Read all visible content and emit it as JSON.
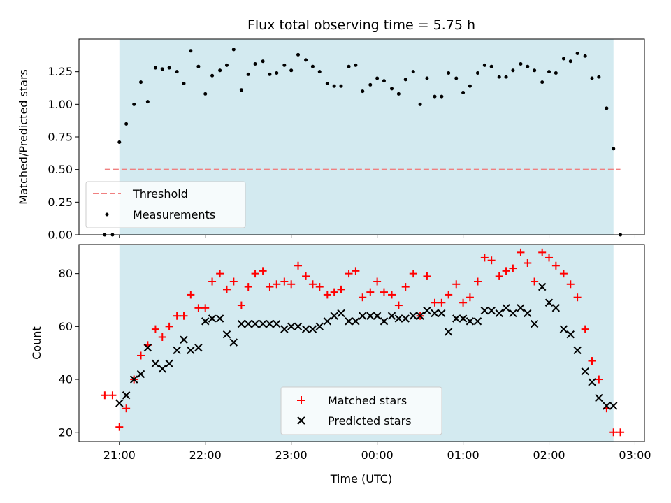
{
  "chart_data": {
    "title": "Flux total observing time = 5.75 h",
    "xlabel": "Time (UTC)",
    "x_ticks": [
      "21:00",
      "22:00",
      "23:00",
      "00:00",
      "01:00",
      "02:00",
      "03:00"
    ],
    "x_range_hours": [
      -0.47,
      6.11
    ],
    "shaded_interval_hours": [
      0,
      5.75
    ],
    "shade_color": "#d3eaf0",
    "top": {
      "type": "scatter",
      "ylabel": "Matched/Predicted stars",
      "ylim": [
        0,
        1.5
      ],
      "y_ticks": [
        "0.00",
        "0.25",
        "0.50",
        "0.75",
        "1.00",
        "1.25"
      ],
      "threshold": {
        "name": "Threshold",
        "value": 0.5,
        "x_start": -0.17,
        "x_end": 5.83,
        "color": "#f08080"
      },
      "series": {
        "name": "Measurements",
        "color": "#000000",
        "x": [
          -0.17,
          -0.08,
          0,
          0.08,
          0.17,
          0.25,
          0.33,
          0.42,
          0.5,
          0.58,
          0.67,
          0.75,
          0.83,
          0.92,
          1,
          1.08,
          1.17,
          1.25,
          1.33,
          1.42,
          1.5,
          1.58,
          1.67,
          1.75,
          1.83,
          1.92,
          2,
          2.08,
          2.17,
          2.25,
          2.33,
          2.42,
          2.5,
          2.58,
          2.67,
          2.75,
          2.83,
          2.92,
          3,
          3.08,
          3.17,
          3.25,
          3.33,
          3.42,
          3.5,
          3.58,
          3.67,
          3.75,
          3.83,
          3.92,
          4,
          4.08,
          4.17,
          4.25,
          4.33,
          4.42,
          4.5,
          4.58,
          4.67,
          4.75,
          4.83,
          4.92,
          5,
          5.08,
          5.17,
          5.25,
          5.33,
          5.42,
          5.5,
          5.58,
          5.67,
          5.75,
          5.83
        ],
        "y": [
          0,
          0,
          0.71,
          0.85,
          1,
          1.17,
          1.02,
          1.28,
          1.27,
          1.28,
          1.25,
          1.16,
          1.41,
          1.29,
          1.08,
          1.22,
          1.26,
          1.3,
          1.42,
          1.11,
          1.23,
          1.31,
          1.33,
          1.23,
          1.24,
          1.3,
          1.26,
          1.38,
          1.34,
          1.29,
          1.25,
          1.16,
          1.14,
          1.14,
          1.29,
          1.3,
          1.1,
          1.15,
          1.2,
          1.18,
          1.12,
          1.08,
          1.19,
          1.25,
          1,
          1.2,
          1.06,
          1.06,
          1.24,
          1.2,
          1.09,
          1.14,
          1.24,
          1.3,
          1.29,
          1.21,
          1.21,
          1.26,
          1.31,
          1.29,
          1.26,
          1.17,
          1.25,
          1.24,
          1.35,
          1.33,
          1.39,
          1.37,
          1.2,
          1.21,
          0.97,
          0.66,
          0
        ]
      }
    },
    "bottom": {
      "type": "scatter",
      "ylabel": "Count",
      "ylim": [
        16.5,
        91
      ],
      "y_ticks": [
        "20",
        "40",
        "60",
        "80"
      ],
      "series": [
        {
          "name": "Matched stars",
          "marker": "+",
          "color": "#ff0000",
          "x": [
            -0.17,
            -0.08,
            0,
            0.08,
            0.17,
            0.25,
            0.33,
            0.42,
            0.5,
            0.58,
            0.67,
            0.75,
            0.83,
            0.92,
            1,
            1.08,
            1.17,
            1.25,
            1.33,
            1.42,
            1.5,
            1.58,
            1.67,
            1.75,
            1.83,
            1.92,
            2,
            2.08,
            2.17,
            2.25,
            2.33,
            2.42,
            2.5,
            2.58,
            2.67,
            2.75,
            2.83,
            2.92,
            3,
            3.08,
            3.17,
            3.25,
            3.33,
            3.42,
            3.5,
            3.58,
            3.67,
            3.75,
            3.83,
            3.92,
            4,
            4.08,
            4.17,
            4.25,
            4.33,
            4.42,
            4.5,
            4.58,
            4.67,
            4.75,
            4.83,
            4.92,
            5,
            5.08,
            5.17,
            5.25,
            5.33,
            5.42,
            5.5,
            5.58,
            5.67,
            5.75,
            5.83
          ],
          "y": [
            34,
            34,
            22,
            29,
            40,
            49,
            53,
            59,
            56,
            60,
            64,
            64,
            72,
            67,
            67,
            77,
            80,
            74,
            77,
            68,
            75,
            80,
            81,
            75,
            76,
            77,
            76,
            83,
            79,
            76,
            75,
            72,
            73,
            74,
            80,
            81,
            71,
            73,
            77,
            73,
            72,
            68,
            75,
            80,
            64,
            79,
            69,
            69,
            72,
            76,
            69,
            71,
            77,
            86,
            85,
            79,
            81,
            82,
            88,
            84,
            77,
            88,
            86,
            83,
            80,
            76,
            71,
            59,
            47,
            40,
            29,
            20,
            20
          ]
        },
        {
          "name": "Predicted stars",
          "marker": "x",
          "color": "#000000",
          "x": [
            0,
            0.08,
            0.17,
            0.25,
            0.33,
            0.42,
            0.5,
            0.58,
            0.67,
            0.75,
            0.83,
            0.92,
            1,
            1.08,
            1.17,
            1.25,
            1.33,
            1.42,
            1.5,
            1.58,
            1.67,
            1.75,
            1.83,
            1.92,
            2,
            2.08,
            2.17,
            2.25,
            2.33,
            2.42,
            2.5,
            2.58,
            2.67,
            2.75,
            2.83,
            2.92,
            3,
            3.08,
            3.17,
            3.25,
            3.33,
            3.42,
            3.5,
            3.58,
            3.67,
            3.75,
            3.83,
            3.92,
            4,
            4.08,
            4.17,
            4.25,
            4.33,
            4.42,
            4.5,
            4.58,
            4.67,
            4.75,
            4.83,
            4.92,
            5,
            5.08,
            5.17,
            5.25,
            5.33,
            5.42,
            5.5,
            5.58,
            5.67,
            5.75
          ],
          "y": [
            31,
            34,
            40,
            42,
            52,
            46,
            44,
            46,
            51,
            55,
            51,
            52,
            62,
            63,
            63,
            57,
            54,
            61,
            61,
            61,
            61,
            61,
            61,
            59,
            60,
            60,
            59,
            59,
            60,
            62,
            64,
            65,
            62,
            62,
            64,
            64,
            64,
            62,
            64,
            63,
            63,
            64,
            64,
            66,
            65,
            65,
            58,
            63,
            63,
            62,
            62,
            66,
            66,
            65,
            67,
            65,
            67,
            65,
            61,
            75,
            69,
            67,
            59,
            57,
            51,
            43,
            39,
            33,
            30,
            30
          ]
        }
      ]
    }
  }
}
